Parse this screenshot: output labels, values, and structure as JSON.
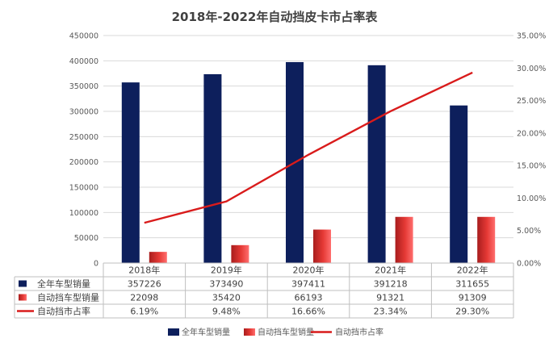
{
  "chart_data": {
    "type": "bar",
    "title": "2018年-2022年自动挡皮卡市占率表",
    "categories": [
      "2018年",
      "2019年",
      "2020年",
      "2021年",
      "2022年"
    ],
    "left_axis": {
      "min": 0,
      "max": 450000,
      "step": 50000,
      "ticks": [
        "0",
        "50000",
        "100000",
        "150000",
        "200000",
        "250000",
        "300000",
        "350000",
        "400000",
        "450000"
      ]
    },
    "right_axis": {
      "min": 0,
      "max": 0.35,
      "step": 0.05,
      "ticks": [
        "0.00%",
        "5.00%",
        "10.00%",
        "15.00%",
        "20.00%",
        "25.00%",
        "30.00%",
        "35.00%"
      ]
    },
    "grid": true,
    "legend_position": "bottom",
    "series": [
      {
        "name": "全年车型销量",
        "kind": "bar",
        "axis": "left",
        "values": [
          357226,
          373490,
          397411,
          391218,
          311655
        ],
        "labels": [
          "357226",
          "373490",
          "397411",
          "391218",
          "311655"
        ],
        "color": "#0d1f5c"
      },
      {
        "name": "自动挡车型销量",
        "kind": "bar",
        "axis": "left",
        "values": [
          22098,
          35420,
          66193,
          91321,
          91309
        ],
        "labels": [
          "22098",
          "35420",
          "66193",
          "91321",
          "91309"
        ],
        "color": "#e53935"
      },
      {
        "name": "自动挡市占率",
        "kind": "line",
        "axis": "right",
        "values": [
          0.0619,
          0.0948,
          0.1666,
          0.2334,
          0.293
        ],
        "labels": [
          "6.19%",
          "9.48%",
          "16.66%",
          "23.34%",
          "29.30%"
        ],
        "color": "#d91b1b"
      }
    ]
  }
}
